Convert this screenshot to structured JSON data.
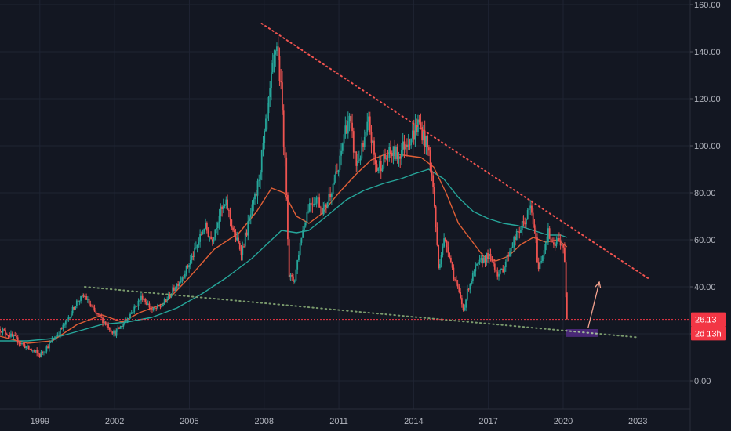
{
  "chart_data": {
    "type": "candlestick",
    "x_ticks": [
      "1999",
      "2002",
      "2005",
      "2008",
      "2011",
      "2014",
      "2017",
      "2020",
      "2023"
    ],
    "y_ticks": [
      "160.00",
      "140.00",
      "120.00",
      "100.00",
      "80.00",
      "60.00",
      "40.00",
      "20.00",
      "0.00"
    ],
    "y_tick_values": [
      160,
      140,
      120,
      100,
      80,
      60,
      40,
      20,
      0
    ],
    "ylim": [
      -12,
      162
    ],
    "xlim": [
      1997.4,
      2025.1
    ],
    "grid": true,
    "price_tag": {
      "label": "26.13",
      "value": 26.13,
      "color": "#f23645"
    },
    "countdown_tag": {
      "label": "2d 13h",
      "value": 20.2,
      "color": "#f23645"
    },
    "price": [
      [
        1997.4,
        22
      ],
      [
        1998.0,
        18
      ],
      [
        1998.5,
        14
      ],
      [
        1999.0,
        11
      ],
      [
        1999.5,
        17
      ],
      [
        2000.0,
        24
      ],
      [
        2000.5,
        34
      ],
      [
        2000.8,
        36
      ],
      [
        2001.2,
        29
      ],
      [
        2001.6,
        25
      ],
      [
        2002.0,
        20
      ],
      [
        2002.4,
        25
      ],
      [
        2002.8,
        31
      ],
      [
        2003.1,
        36
      ],
      [
        2003.5,
        30
      ],
      [
        2003.9,
        32
      ],
      [
        2004.3,
        38
      ],
      [
        2004.7,
        44
      ],
      [
        2005.0,
        50
      ],
      [
        2005.3,
        57
      ],
      [
        2005.6,
        66
      ],
      [
        2005.9,
        60
      ],
      [
        2006.2,
        71
      ],
      [
        2006.5,
        75
      ],
      [
        2006.8,
        62
      ],
      [
        2007.1,
        55
      ],
      [
        2007.4,
        68
      ],
      [
        2007.7,
        80
      ],
      [
        2007.9,
        95
      ],
      [
        2008.1,
        110
      ],
      [
        2008.3,
        128
      ],
      [
        2008.5,
        145
      ],
      [
        2008.7,
        120
      ],
      [
        2008.9,
        80
      ],
      [
        2009.0,
        45
      ],
      [
        2009.2,
        42
      ],
      [
        2009.5,
        62
      ],
      [
        2009.8,
        75
      ],
      [
        2010.1,
        78
      ],
      [
        2010.4,
        72
      ],
      [
        2010.7,
        82
      ],
      [
        2011.0,
        90
      ],
      [
        2011.2,
        105
      ],
      [
        2011.4,
        112
      ],
      [
        2011.7,
        92
      ],
      [
        2012.0,
        100
      ],
      [
        2012.2,
        110
      ],
      [
        2012.5,
        90
      ],
      [
        2012.8,
        94
      ],
      [
        2013.1,
        97
      ],
      [
        2013.4,
        96
      ],
      [
        2013.7,
        102
      ],
      [
        2014.0,
        105
      ],
      [
        2014.2,
        110
      ],
      [
        2014.4,
        104
      ],
      [
        2014.6,
        98
      ],
      [
        2014.8,
        80
      ],
      [
        2015.0,
        48
      ],
      [
        2015.2,
        60
      ],
      [
        2015.4,
        56
      ],
      [
        2015.6,
        45
      ],
      [
        2015.8,
        38
      ],
      [
        2016.0,
        30
      ],
      [
        2016.2,
        40
      ],
      [
        2016.5,
        48
      ],
      [
        2016.8,
        52
      ],
      [
        2017.0,
        53
      ],
      [
        2017.2,
        50
      ],
      [
        2017.4,
        45
      ],
      [
        2017.6,
        48
      ],
      [
        2017.9,
        57
      ],
      [
        2018.2,
        63
      ],
      [
        2018.5,
        69
      ],
      [
        2018.7,
        74
      ],
      [
        2018.9,
        60
      ],
      [
        2019.0,
        47
      ],
      [
        2019.2,
        55
      ],
      [
        2019.4,
        63
      ],
      [
        2019.6,
        56
      ],
      [
        2019.8,
        60
      ],
      [
        2020.0,
        58
      ],
      [
        2020.05,
        52
      ],
      [
        2020.15,
        26.13
      ]
    ],
    "ma_short": {
      "color": "#e15f36",
      "points": [
        [
          1997.4,
          19
        ],
        [
          1998.5,
          16
        ],
        [
          1999.5,
          17
        ],
        [
          2000.5,
          24
        ],
        [
          2001.5,
          28
        ],
        [
          2002.3,
          25
        ],
        [
          2003.0,
          29
        ],
        [
          2004.0,
          33
        ],
        [
          2005.0,
          44
        ],
        [
          2006.0,
          56
        ],
        [
          2007.0,
          63
        ],
        [
          2007.7,
          72
        ],
        [
          2008.3,
          82
        ],
        [
          2008.8,
          80
        ],
        [
          2009.3,
          70
        ],
        [
          2009.8,
          67
        ],
        [
          2010.3,
          71
        ],
        [
          2011.0,
          80
        ],
        [
          2011.7,
          88
        ],
        [
          2012.3,
          94
        ],
        [
          2013.0,
          97
        ],
        [
          2013.6,
          96
        ],
        [
          2014.3,
          95
        ],
        [
          2014.8,
          91
        ],
        [
          2015.3,
          80
        ],
        [
          2015.8,
          67
        ],
        [
          2016.3,
          60
        ],
        [
          2016.8,
          53
        ],
        [
          2017.3,
          51
        ],
        [
          2017.8,
          53
        ],
        [
          2018.3,
          58
        ],
        [
          2018.8,
          61
        ],
        [
          2019.3,
          59
        ],
        [
          2019.8,
          60
        ],
        [
          2020.15,
          57
        ]
      ]
    },
    "ma_long": {
      "color": "#26a69a",
      "points": [
        [
          1997.4,
          17
        ],
        [
          1998.5,
          17
        ],
        [
          1999.5,
          18
        ],
        [
          2000.5,
          21
        ],
        [
          2001.5,
          24
        ],
        [
          2002.5,
          25
        ],
        [
          2003.5,
          27
        ],
        [
          2004.5,
          31
        ],
        [
          2005.5,
          37
        ],
        [
          2006.5,
          44
        ],
        [
          2007.5,
          52
        ],
        [
          2008.2,
          59
        ],
        [
          2008.7,
          64
        ],
        [
          2009.3,
          63
        ],
        [
          2009.8,
          64
        ],
        [
          2010.5,
          70
        ],
        [
          2011.3,
          77
        ],
        [
          2012.0,
          81
        ],
        [
          2012.8,
          84
        ],
        [
          2013.5,
          86
        ],
        [
          2014.0,
          88
        ],
        [
          2014.6,
          90
        ],
        [
          2015.2,
          86
        ],
        [
          2015.8,
          78
        ],
        [
          2016.4,
          72
        ],
        [
          2017.0,
          69
        ],
        [
          2017.6,
          67
        ],
        [
          2018.2,
          66
        ],
        [
          2018.8,
          64
        ],
        [
          2019.4,
          62
        ],
        [
          2019.9,
          62
        ],
        [
          2020.15,
          61
        ]
      ]
    },
    "trendline_top": {
      "color": "#f0534f",
      "from": [
        2007.9,
        152
      ],
      "to": [
        2023.5,
        43
      ]
    },
    "trendline_bottom": {
      "color": "#7a9a6c",
      "from": [
        2000.8,
        40
      ],
      "to": [
        2023.0,
        18.5
      ]
    },
    "horizontal_line": {
      "color": "#f23645",
      "value": 26.13
    },
    "projection_arrow": {
      "color": "#f5a38f",
      "from": [
        2021.0,
        22.5
      ],
      "to": [
        2021.45,
        42
      ]
    },
    "highlight_box": {
      "color": "#5b2d91",
      "x_from": 2020.1,
      "x_to": 2021.4,
      "y_from": 18.7,
      "y_to": 22.0
    }
  }
}
